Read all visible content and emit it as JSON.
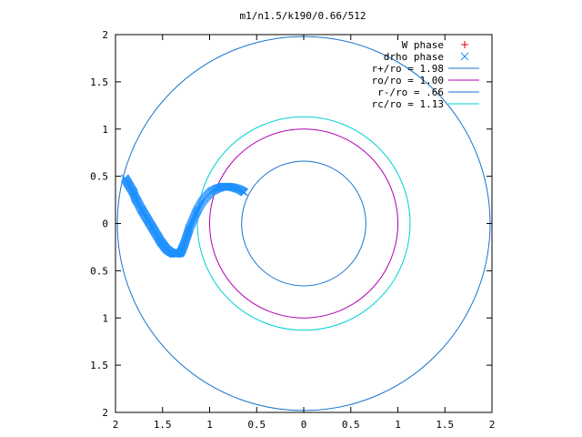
{
  "chart_data": {
    "type": "scatter",
    "title": "m1/n1.5/k190/0.66/512",
    "xlabel": "",
    "ylabel": "",
    "xlim": [
      -2,
      2
    ],
    "ylim": [
      -2,
      2
    ],
    "x_ticks": [
      -2,
      -1.5,
      -1,
      -0.5,
      0,
      0.5,
      1,
      1.5,
      2
    ],
    "y_ticks": [
      -2,
      -1.5,
      -1,
      -0.5,
      0,
      0.5,
      1,
      1.5,
      2
    ],
    "x_tick_labels": [
      "2",
      "1.5",
      "1",
      "0.5",
      "0",
      "0.5",
      "1",
      "1.5",
      "2"
    ],
    "y_tick_labels": [
      "2",
      "1.5",
      "1",
      "0.5",
      "0",
      "0.5",
      "1",
      "1.5",
      "2"
    ],
    "grid": false,
    "legend_position": "top-right",
    "legend": [
      {
        "label": "W phase",
        "marker": "+",
        "color": "#e00000"
      },
      {
        "label": "drho phase",
        "marker": "x",
        "color": "#1e90ff"
      },
      {
        "label": "r+/ro = 1.98",
        "marker": "line",
        "color": "#1874cd"
      },
      {
        "label": "ro/ro = 1.00",
        "marker": "line",
        "color": "#b000b0"
      },
      {
        "label": "r-/ro = .66",
        "marker": "line",
        "color": "#1874cd"
      },
      {
        "label": "rc/ro = 1.13",
        "marker": "line",
        "color": "#00d0d0"
      }
    ],
    "circles": [
      {
        "name": "r+/ro",
        "radius": 1.98,
        "color": "#1874cd"
      },
      {
        "name": "ro/ro",
        "radius": 1.0,
        "color": "#b000b0"
      },
      {
        "name": "r-/ro",
        "radius": 0.66,
        "color": "#1874cd"
      },
      {
        "name": "rc/ro",
        "radius": 1.13,
        "color": "#00d0d0"
      }
    ],
    "series": [
      {
        "name": "drho phase",
        "marker": "x",
        "color": "#1e90ff",
        "points": [
          [
            -1.9,
            0.48
          ],
          [
            -1.87,
            0.43
          ],
          [
            -1.84,
            0.38
          ],
          [
            -1.81,
            0.33
          ],
          [
            -1.79,
            0.27
          ],
          [
            -1.76,
            0.22
          ],
          [
            -1.73,
            0.16
          ],
          [
            -1.7,
            0.11
          ],
          [
            -1.67,
            0.06
          ],
          [
            -1.64,
            0.01
          ],
          [
            -1.61,
            -0.04
          ],
          [
            -1.58,
            -0.09
          ],
          [
            -1.55,
            -0.14
          ],
          [
            -1.52,
            -0.19
          ],
          [
            -1.49,
            -0.23
          ],
          [
            -1.46,
            -0.27
          ],
          [
            -1.42,
            -0.3
          ],
          [
            -1.38,
            -0.32
          ],
          [
            -1.34,
            -0.32
          ],
          [
            -1.31,
            -0.31
          ],
          [
            -1.29,
            -0.27
          ],
          [
            -1.27,
            -0.22
          ],
          [
            -1.25,
            -0.16
          ],
          [
            -1.23,
            -0.1
          ],
          [
            -1.21,
            -0.04
          ],
          [
            -1.18,
            0.03
          ],
          [
            -1.15,
            0.1
          ],
          [
            -1.12,
            0.16
          ],
          [
            -1.08,
            0.23
          ],
          [
            -1.03,
            0.29
          ],
          [
            -0.98,
            0.34
          ],
          [
            -0.92,
            0.37
          ],
          [
            -0.86,
            0.39
          ],
          [
            -0.8,
            0.39
          ],
          [
            -0.74,
            0.38
          ],
          [
            -0.68,
            0.36
          ],
          [
            -0.63,
            0.33
          ]
        ]
      }
    ]
  }
}
